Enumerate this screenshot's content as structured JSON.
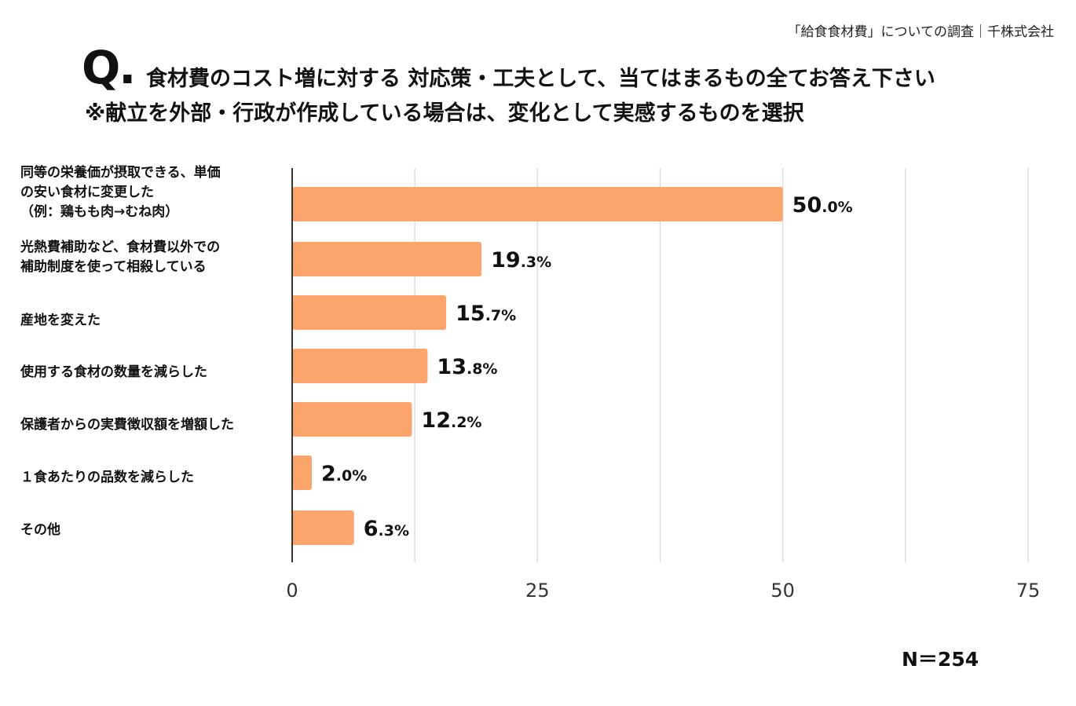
{
  "source": "「給食食材費」についての調査｜千株式会社",
  "question": {
    "mark": "Q.",
    "line1": "食材費のコスト増に対する 対応策・工夫として、当てはまるもの全てお答え下さい",
    "line2": "※献立を外部・行政が作成している場合は、変化として実感するものを選択"
  },
  "sample_size": "N＝254",
  "colors": {
    "bar": "#fba56c",
    "grid": "#dddddd",
    "axis": "#333333"
  },
  "chart_data": {
    "type": "bar",
    "orientation": "horizontal",
    "categories": [
      "同等の栄養価が摂取できる、単価\nの安い食材に変更した\n（例：鶏もも肉→むね肉）",
      "光熱費補助など、食材費以外での\n補助制度を使って相殺している",
      "産地を変えた",
      "使用する食材の数量を減らした",
      "保護者からの実費徴収額を増額した",
      "１食あたりの品数を減らした",
      "その他"
    ],
    "values": [
      50.0,
      19.3,
      15.7,
      13.8,
      12.2,
      2.0,
      6.3
    ],
    "value_labels": [
      {
        "int": "50",
        "dec": ".0%"
      },
      {
        "int": "19",
        "dec": ".3%"
      },
      {
        "int": "15",
        "dec": ".7%"
      },
      {
        "int": "13",
        "dec": ".8%"
      },
      {
        "int": "12",
        "dec": ".2%"
      },
      {
        "int": "2",
        "dec": ".0%"
      },
      {
        "int": "6",
        "dec": ".3%"
      }
    ],
    "xlim": [
      0,
      75
    ],
    "xticks": [
      "0",
      "25",
      "50",
      "75"
    ],
    "grid": true
  }
}
